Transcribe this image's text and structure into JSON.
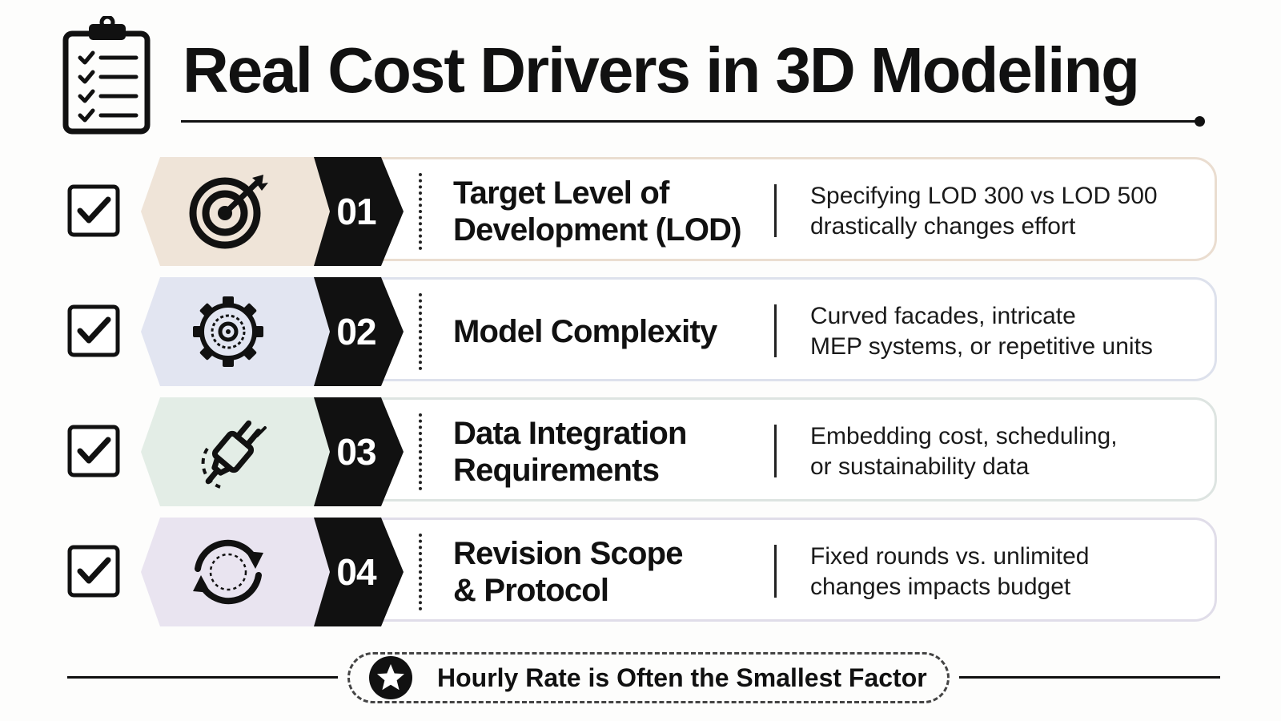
{
  "header": {
    "title": "Real Cost Drivers in 3D Modeling",
    "icon": "clipboard-checklist-icon"
  },
  "rows": [
    {
      "number": "01",
      "title": "Target Level of\nDevelopment (LOD)",
      "description": "Specifying LOD 300 vs LOD 500\ndrastically changes effort",
      "icon": "target-arrow-icon",
      "tint": "#efe4d8",
      "border": "#eaddd0"
    },
    {
      "number": "02",
      "title": "Model Complexity",
      "description": "Curved facades, intricate\nMEP systems, or repetitive units",
      "icon": "gear-icon",
      "tint": "#e2e5f1",
      "border": "#dde1ec"
    },
    {
      "number": "03",
      "title": "Data Integration\nRequirements",
      "description": "Embedding cost, scheduling,\nor sustainability data",
      "icon": "plug-icon",
      "tint": "#e3ede6",
      "border": "#dde4e1"
    },
    {
      "number": "04",
      "title": "Revision Scope\n& Protocol",
      "description": "Fixed rounds vs. unlimited\nchanges impacts budget",
      "icon": "refresh-cycle-icon",
      "tint": "#e9e4f0",
      "border": "#e0dde9"
    }
  ],
  "footer": {
    "text": "Hourly Rate is Often the Smallest Factor",
    "icon": "star-icon"
  }
}
